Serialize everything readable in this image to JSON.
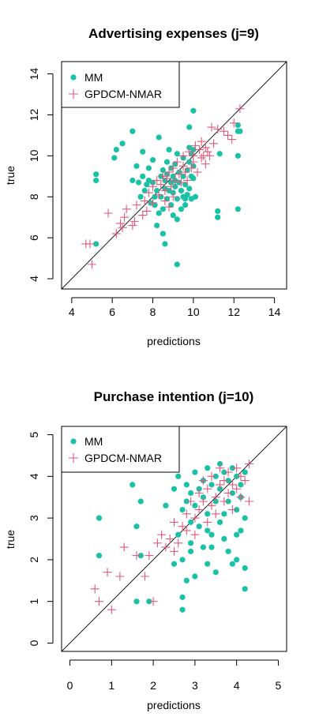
{
  "colors": {
    "mm": "#19c2a6",
    "gpdcm": "#df5a7a",
    "axis": "#000000"
  },
  "chart_data": [
    {
      "type": "scatter",
      "title": "Advertising expenses (j=9)",
      "xlabel": "predictions",
      "ylabel": "true",
      "xlim": [
        3.5,
        14.6
      ],
      "ylim": [
        3.5,
        14.6
      ],
      "xticks": [
        4,
        6,
        8,
        10,
        12,
        14
      ],
      "yticks": [
        4,
        6,
        8,
        10,
        12,
        14
      ],
      "reference_line": "y = x",
      "legend": {
        "position": "top-left",
        "entries": [
          "MM",
          "GPDCM-NMAR"
        ]
      },
      "series": [
        {
          "name": "MM",
          "marker": "filled-circle",
          "points": [
            [
              5.2,
              9.1
            ],
            [
              5.2,
              8.8
            ],
            [
              5.2,
              5.7
            ],
            [
              6.1,
              9.9
            ],
            [
              6.2,
              10.3
            ],
            [
              6.5,
              10.6
            ],
            [
              7.0,
              11.2
            ],
            [
              7.0,
              8.8
            ],
            [
              7.2,
              9.5
            ],
            [
              7.3,
              8.7
            ],
            [
              7.4,
              8.0
            ],
            [
              7.5,
              9.0
            ],
            [
              7.5,
              10.2
            ],
            [
              7.6,
              8.3
            ],
            [
              7.7,
              8.6
            ],
            [
              7.8,
              9.4
            ],
            [
              7.8,
              8.8
            ],
            [
              7.9,
              7.7
            ],
            [
              8.0,
              9.8
            ],
            [
              8.0,
              8.7
            ],
            [
              8.1,
              8.0
            ],
            [
              8.1,
              7.6
            ],
            [
              8.2,
              8.3
            ],
            [
              8.2,
              6.6
            ],
            [
              8.3,
              10.9
            ],
            [
              8.3,
              7.2
            ],
            [
              8.4,
              9.0
            ],
            [
              8.4,
              8.0
            ],
            [
              8.5,
              9.3
            ],
            [
              8.5,
              7.4
            ],
            [
              8.5,
              6.2
            ],
            [
              8.6,
              8.8
            ],
            [
              8.6,
              8.4
            ],
            [
              8.6,
              5.7
            ],
            [
              8.7,
              9.7
            ],
            [
              8.7,
              9.1
            ],
            [
              8.7,
              7.9
            ],
            [
              8.8,
              10.3
            ],
            [
              8.8,
              8.3
            ],
            [
              8.9,
              9.4
            ],
            [
              8.9,
              8.7
            ],
            [
              8.9,
              7.6
            ],
            [
              9.0,
              9.0
            ],
            [
              9.0,
              8.2
            ],
            [
              9.0,
              7.1
            ],
            [
              9.1,
              9.6
            ],
            [
              9.1,
              8.8
            ],
            [
              9.1,
              8.5
            ],
            [
              9.2,
              10.1
            ],
            [
              9.2,
              7.9
            ],
            [
              9.2,
              6.9
            ],
            [
              9.2,
              4.7
            ],
            [
              9.3,
              9.2
            ],
            [
              9.3,
              8.7
            ],
            [
              9.4,
              8.3
            ],
            [
              9.4,
              7.4
            ],
            [
              9.5,
              9.9
            ],
            [
              9.5,
              9.0
            ],
            [
              9.5,
              8.0
            ],
            [
              9.6,
              8.6
            ],
            [
              9.6,
              7.9
            ],
            [
              9.6,
              7.6
            ],
            [
              9.7,
              9.3
            ],
            [
              9.7,
              8.1
            ],
            [
              9.8,
              11.4
            ],
            [
              9.8,
              10.4
            ],
            [
              9.8,
              9.7
            ],
            [
              9.8,
              8.4
            ],
            [
              9.9,
              10.1
            ],
            [
              9.9,
              9.0
            ],
            [
              9.9,
              7.9
            ],
            [
              10.0,
              9.5
            ],
            [
              10.0,
              8.9
            ],
            [
              10.0,
              12.2
            ],
            [
              10.0,
              10.3
            ],
            [
              10.1,
              8.0
            ],
            [
              11.2,
              7.3
            ],
            [
              11.2,
              7.0
            ],
            [
              11.3,
              10.1
            ],
            [
              12.2,
              11.5
            ],
            [
              12.2,
              11.2
            ],
            [
              12.2,
              10.0
            ],
            [
              12.2,
              7.4
            ],
            [
              12.3,
              11.2
            ]
          ]
        },
        {
          "name": "GPDCM-NMAR",
          "marker": "plus",
          "points": [
            [
              4.7,
              5.7
            ],
            [
              4.9,
              5.7
            ],
            [
              5.0,
              4.7
            ],
            [
              5.8,
              7.2
            ],
            [
              6.2,
              6.2
            ],
            [
              6.4,
              6.7
            ],
            [
              6.5,
              6.5
            ],
            [
              6.6,
              7.0
            ],
            [
              6.7,
              7.4
            ],
            [
              7.0,
              6.6
            ],
            [
              7.1,
              6.8
            ],
            [
              7.2,
              7.6
            ],
            [
              7.5,
              7.1
            ],
            [
              7.6,
              7.8
            ],
            [
              7.7,
              7.3
            ],
            [
              7.8,
              8.2
            ],
            [
              8.0,
              7.7
            ],
            [
              8.0,
              8.5
            ],
            [
              8.2,
              8.8
            ],
            [
              8.3,
              8.1
            ],
            [
              8.4,
              8.6
            ],
            [
              8.5,
              9.0
            ],
            [
              8.6,
              8.3
            ],
            [
              8.6,
              7.8
            ],
            [
              8.7,
              8.9
            ],
            [
              8.8,
              9.2
            ],
            [
              8.8,
              7.5
            ],
            [
              8.9,
              8.5
            ],
            [
              9.0,
              9.4
            ],
            [
              9.0,
              8.0
            ],
            [
              9.1,
              8.8
            ],
            [
              9.2,
              9.7
            ],
            [
              9.3,
              9.1
            ],
            [
              9.4,
              8.7
            ],
            [
              9.5,
              9.5
            ],
            [
              9.5,
              10.0
            ],
            [
              9.6,
              9.2
            ],
            [
              9.7,
              8.8
            ],
            [
              9.8,
              10.2
            ],
            [
              9.9,
              9.4
            ],
            [
              10.0,
              10.0
            ],
            [
              10.0,
              9.7
            ],
            [
              10.1,
              10.5
            ],
            [
              10.2,
              9.2
            ],
            [
              10.3,
              10.3
            ],
            [
              10.4,
              10.7
            ],
            [
              10.4,
              9.9
            ],
            [
              10.5,
              10.0
            ],
            [
              10.6,
              10.4
            ],
            [
              10.6,
              9.6
            ],
            [
              10.7,
              10.2
            ],
            [
              10.8,
              10.0
            ],
            [
              10.9,
              11.4
            ],
            [
              11.0,
              10.6
            ],
            [
              11.2,
              11.3
            ],
            [
              11.5,
              11.2
            ],
            [
              11.7,
              11.0
            ],
            [
              11.9,
              10.8
            ],
            [
              12.0,
              11.6
            ],
            [
              12.3,
              12.3
            ]
          ]
        }
      ]
    },
    {
      "type": "scatter",
      "title": "Purchase intention (j=10)",
      "xlabel": "predictions",
      "ylabel": "true",
      "xlim": [
        -0.2,
        5.2
      ],
      "ylim": [
        -0.2,
        5.2
      ],
      "xticks": [
        0,
        1,
        2,
        3,
        4,
        5
      ],
      "yticks": [
        0,
        1,
        2,
        3,
        4,
        5
      ],
      "reference_line": "y = x",
      "legend": {
        "position": "top-left",
        "entries": [
          "MM",
          "GPDCM-NMAR"
        ]
      },
      "series": [
        {
          "name": "MM",
          "marker": "filled-circle",
          "points": [
            [
              0.7,
              3.0
            ],
            [
              0.7,
              2.1
            ],
            [
              1.5,
              3.8
            ],
            [
              1.6,
              2.8
            ],
            [
              1.6,
              1.0
            ],
            [
              1.7,
              3.4
            ],
            [
              1.7,
              2.1
            ],
            [
              1.9,
              1.0
            ],
            [
              2.3,
              3.3
            ],
            [
              2.5,
              3.7
            ],
            [
              2.5,
              1.9
            ],
            [
              2.6,
              4.0
            ],
            [
              2.6,
              2.6
            ],
            [
              2.7,
              3.2
            ],
            [
              2.7,
              2.0
            ],
            [
              2.7,
              1.1
            ],
            [
              2.7,
              0.8
            ],
            [
              2.8,
              3.8
            ],
            [
              2.8,
              3.4
            ],
            [
              2.8,
              1.5
            ],
            [
              2.9,
              3.6
            ],
            [
              2.9,
              2.9
            ],
            [
              2.9,
              2.4
            ],
            [
              2.9,
              2.2
            ],
            [
              3.0,
              4.1
            ],
            [
              3.0,
              3.3
            ],
            [
              3.0,
              1.6
            ],
            [
              3.1,
              3.7
            ],
            [
              3.1,
              2.8
            ],
            [
              3.2,
              3.9
            ],
            [
              3.2,
              3.5
            ],
            [
              3.2,
              2.3
            ],
            [
              3.3,
              4.2
            ],
            [
              3.3,
              3.1
            ],
            [
              3.3,
              1.9
            ],
            [
              3.3,
              2.7
            ],
            [
              3.4,
              3.8
            ],
            [
              3.4,
              2.6
            ],
            [
              3.4,
              2.3
            ],
            [
              3.5,
              4.0
            ],
            [
              3.5,
              3.4
            ],
            [
              3.5,
              1.7
            ],
            [
              3.6,
              4.3
            ],
            [
              3.6,
              3.7
            ],
            [
              3.6,
              2.9
            ],
            [
              3.7,
              3.1
            ],
            [
              3.7,
              2.5
            ],
            [
              3.7,
              4.1
            ],
            [
              3.8,
              3.9
            ],
            [
              3.8,
              3.4
            ],
            [
              3.8,
              2.2
            ],
            [
              3.9,
              4.2
            ],
            [
              3.9,
              3.6
            ],
            [
              3.9,
              1.9
            ],
            [
              4.0,
              4.0
            ],
            [
              4.0,
              3.2
            ],
            [
              4.0,
              2.6
            ],
            [
              4.0,
              2.0
            ],
            [
              4.1,
              3.8
            ],
            [
              4.1,
              3.5
            ],
            [
              4.1,
              2.7
            ],
            [
              4.2,
              4.1
            ],
            [
              4.2,
              3.0
            ],
            [
              4.2,
              1.8
            ],
            [
              4.2,
              1.3
            ]
          ]
        },
        {
          "name": "GPDCM-NMAR",
          "marker": "plus",
          "points": [
            [
              0.6,
              1.3
            ],
            [
              0.7,
              1.0
            ],
            [
              0.9,
              1.7
            ],
            [
              1.0,
              0.8
            ],
            [
              1.2,
              1.6
            ],
            [
              1.3,
              2.3
            ],
            [
              1.6,
              2.1
            ],
            [
              1.8,
              1.6
            ],
            [
              1.9,
              2.1
            ],
            [
              2.0,
              1.0
            ],
            [
              2.1,
              2.4
            ],
            [
              2.2,
              2.6
            ],
            [
              2.3,
              2.3
            ],
            [
              2.4,
              2.5
            ],
            [
              2.5,
              2.9
            ],
            [
              2.5,
              2.2
            ],
            [
              2.6,
              2.4
            ],
            [
              2.7,
              2.8
            ],
            [
              2.8,
              3.1
            ],
            [
              2.8,
              2.7
            ],
            [
              2.9,
              3.4
            ],
            [
              3.0,
              3.0
            ],
            [
              3.0,
              2.6
            ],
            [
              3.1,
              3.6
            ],
            [
              3.1,
              3.2
            ],
            [
              3.2,
              3.9
            ],
            [
              3.2,
              3.4
            ],
            [
              3.3,
              3.7
            ],
            [
              3.3,
              2.9
            ],
            [
              3.4,
              3.3
            ],
            [
              3.4,
              4.0
            ],
            [
              3.5,
              3.5
            ],
            [
              3.5,
              3.1
            ],
            [
              3.6,
              3.8
            ],
            [
              3.6,
              4.2
            ],
            [
              3.7,
              3.4
            ],
            [
              3.7,
              3.9
            ],
            [
              3.8,
              4.1
            ],
            [
              3.8,
              3.6
            ],
            [
              3.9,
              3.8
            ],
            [
              3.9,
              3.2
            ],
            [
              4.0,
              4.2
            ],
            [
              4.0,
              3.7
            ],
            [
              4.1,
              4.0
            ],
            [
              4.1,
              3.5
            ],
            [
              4.2,
              3.9
            ],
            [
              4.3,
              4.3
            ],
            [
              4.3,
              3.4
            ]
          ]
        }
      ]
    }
  ]
}
